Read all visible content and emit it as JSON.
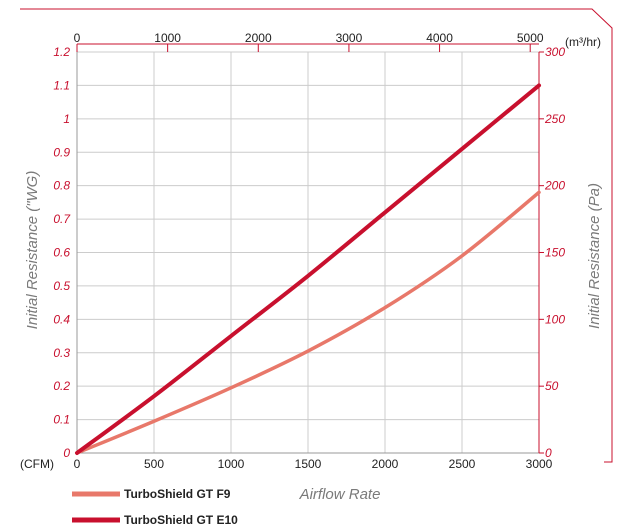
{
  "chart_data": {
    "type": "line",
    "xlabel": "Airflow Rate",
    "x_unit_bottom": "(CFM)",
    "x_unit_top": "(m³/hr)",
    "ylabel_left": "Initial Resistance (\"WG)",
    "ylabel_right": "Initial Resistance (Pa)",
    "xlim": [
      0,
      3000
    ],
    "ylim": [
      0,
      1.2
    ],
    "x_ticks_bottom": [
      "0",
      "500",
      "1000",
      "1500",
      "2000",
      "2500",
      "3000"
    ],
    "x_ticks_top": [
      "0",
      "1000",
      "2000",
      "3000",
      "4000",
      "5000"
    ],
    "y_ticks_left": [
      "0",
      "0.1",
      "0.2",
      "0.3",
      "0.4",
      "0.5",
      "0.6",
      "0.7",
      "0.8",
      "0.9",
      "1",
      "1.1",
      "1.2"
    ],
    "y_ticks_right": [
      "0",
      "50",
      "100",
      "150",
      "200",
      "250",
      "300"
    ],
    "grid": true,
    "legend_position": "bottom-left",
    "series": [
      {
        "name": "TurboShield GT F9",
        "color": "#e8786a",
        "x": [
          0,
          500,
          1000,
          1500,
          2000,
          2500,
          3000
        ],
        "y": [
          0,
          0.095,
          0.195,
          0.305,
          0.435,
          0.59,
          0.78
        ]
      },
      {
        "name": "TurboShield GT E10",
        "color": "#c8102e",
        "x": [
          0,
          500,
          1000,
          1500,
          2000,
          2500,
          3000
        ],
        "y": [
          0,
          0.17,
          0.35,
          0.53,
          0.72,
          0.91,
          1.1
        ]
      }
    ]
  }
}
